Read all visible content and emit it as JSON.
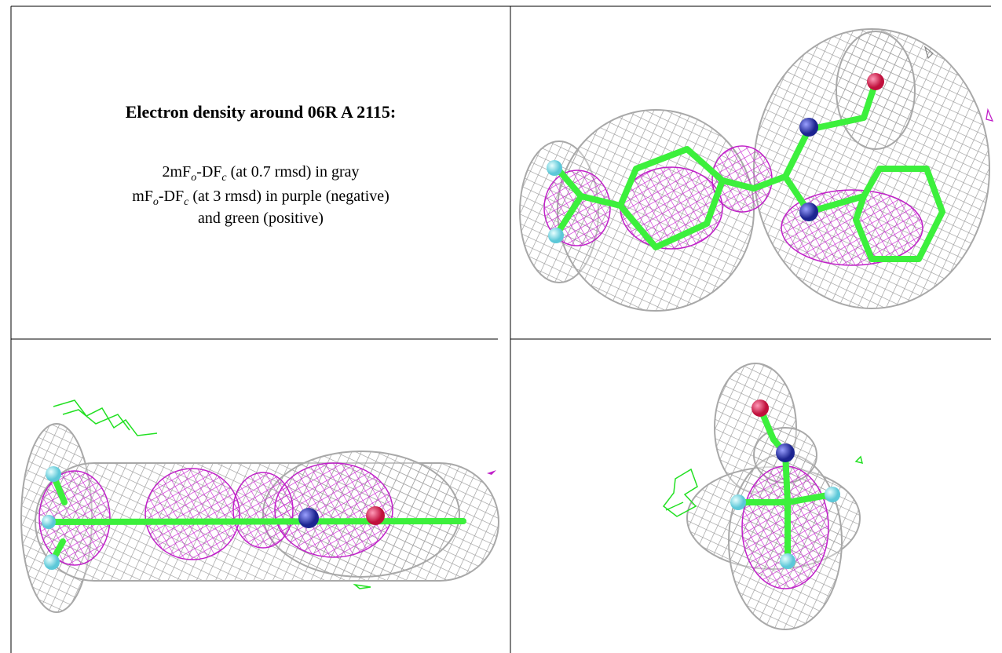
{
  "header": {
    "title": "Electron density around 06R A 2115:"
  },
  "caption": {
    "lines": [
      [
        "2mF",
        "o",
        "-DF",
        "c",
        " (at 0.7 rmsd) in gray"
      ],
      [
        "mF",
        "o",
        "-DF",
        "c",
        " (at 3 rmsd) in purple (negative)"
      ],
      [
        "and green (positive)"
      ]
    ]
  }
}
